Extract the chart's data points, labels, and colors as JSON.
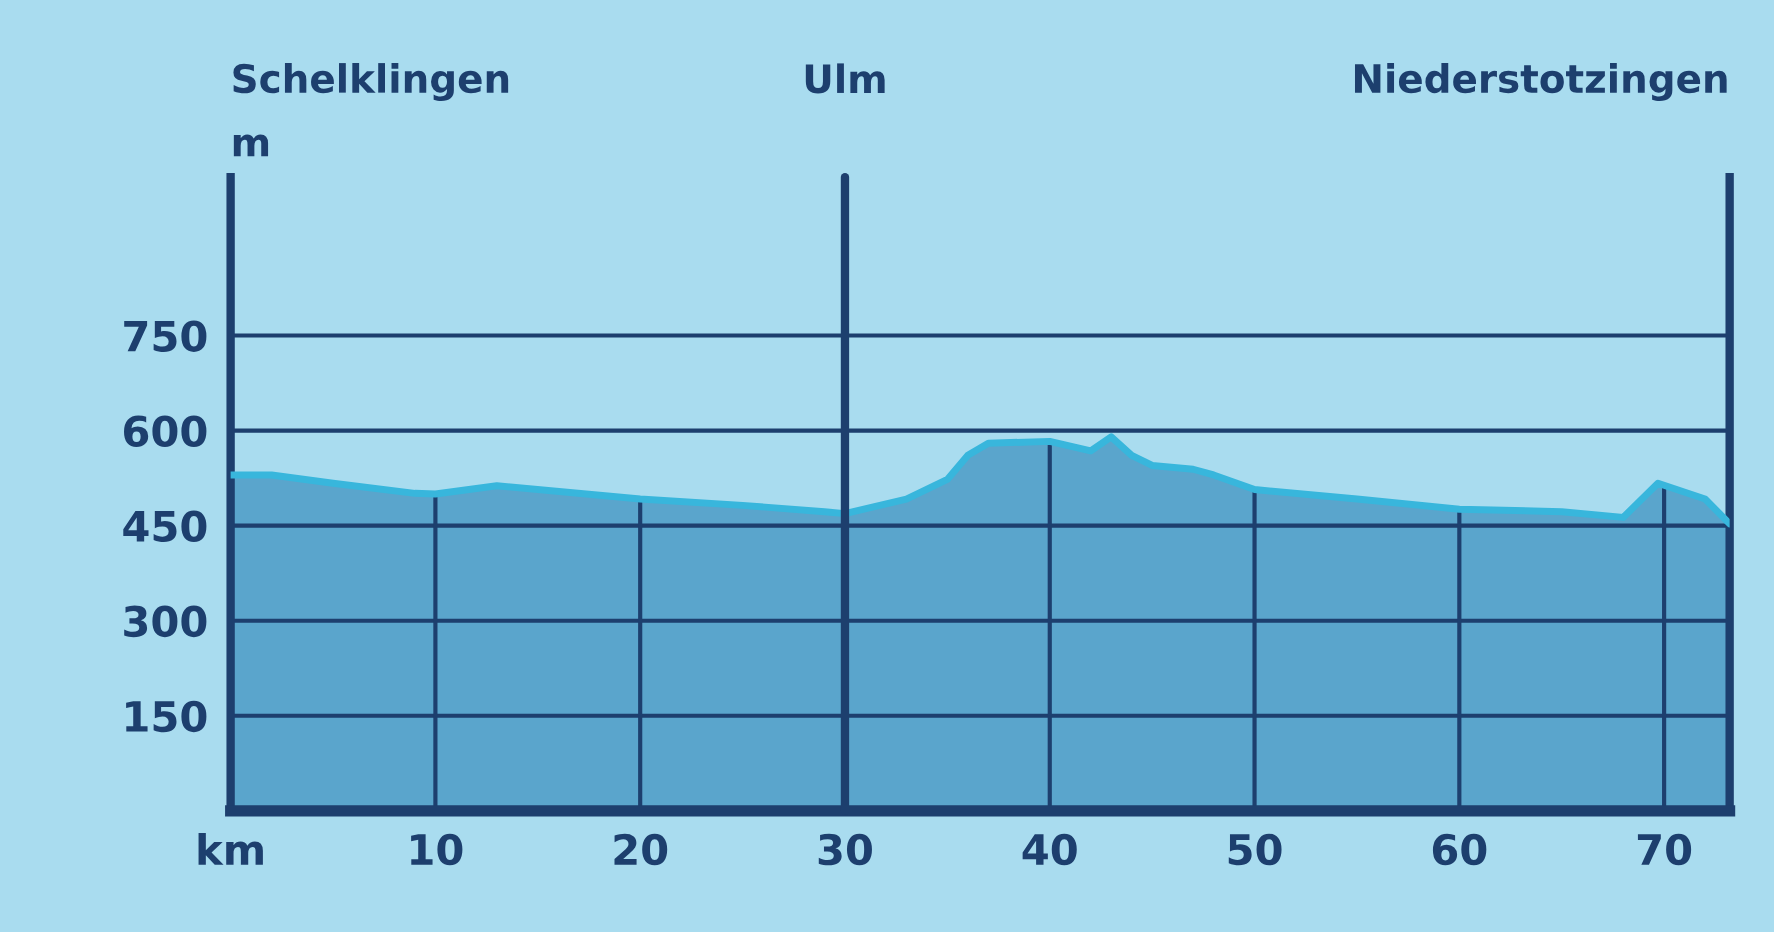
{
  "chart_data": {
    "type": "area",
    "ylabel": "m",
    "x": [
      0,
      2,
      5,
      9,
      10,
      13,
      20,
      25,
      29,
      30,
      33,
      35,
      36,
      37,
      40,
      42,
      43,
      44,
      45,
      47,
      48,
      50,
      55,
      60,
      65,
      68,
      69.7,
      72,
      73.2
    ],
    "series": [
      {
        "color": "#38b6dc",
        "values": [
          530,
          530,
          517,
          501,
          500,
          513,
          492,
          482,
          472,
          469,
          492,
          523,
          561,
          580,
          583,
          568,
          590,
          561,
          545,
          539,
          530,
          507,
          492,
          476,
          472,
          463,
          517,
          492,
          453
        ]
      }
    ],
    "xlim": [
      0,
      73.2
    ],
    "xticks": [
      {
        "value": 0,
        "label": "km"
      },
      10,
      20,
      30,
      40,
      50,
      60,
      70
    ],
    "ylim": [
      0,
      1000
    ],
    "yticks": [
      150,
      300,
      450,
      600,
      750
    ],
    "ref_lines": [
      {
        "axis": "x",
        "value": 30,
        "label": "Ulm"
      }
    ],
    "annotations": [
      "Schelklingen",
      "Niederstotzingen"
    ],
    "grid": true
  }
}
